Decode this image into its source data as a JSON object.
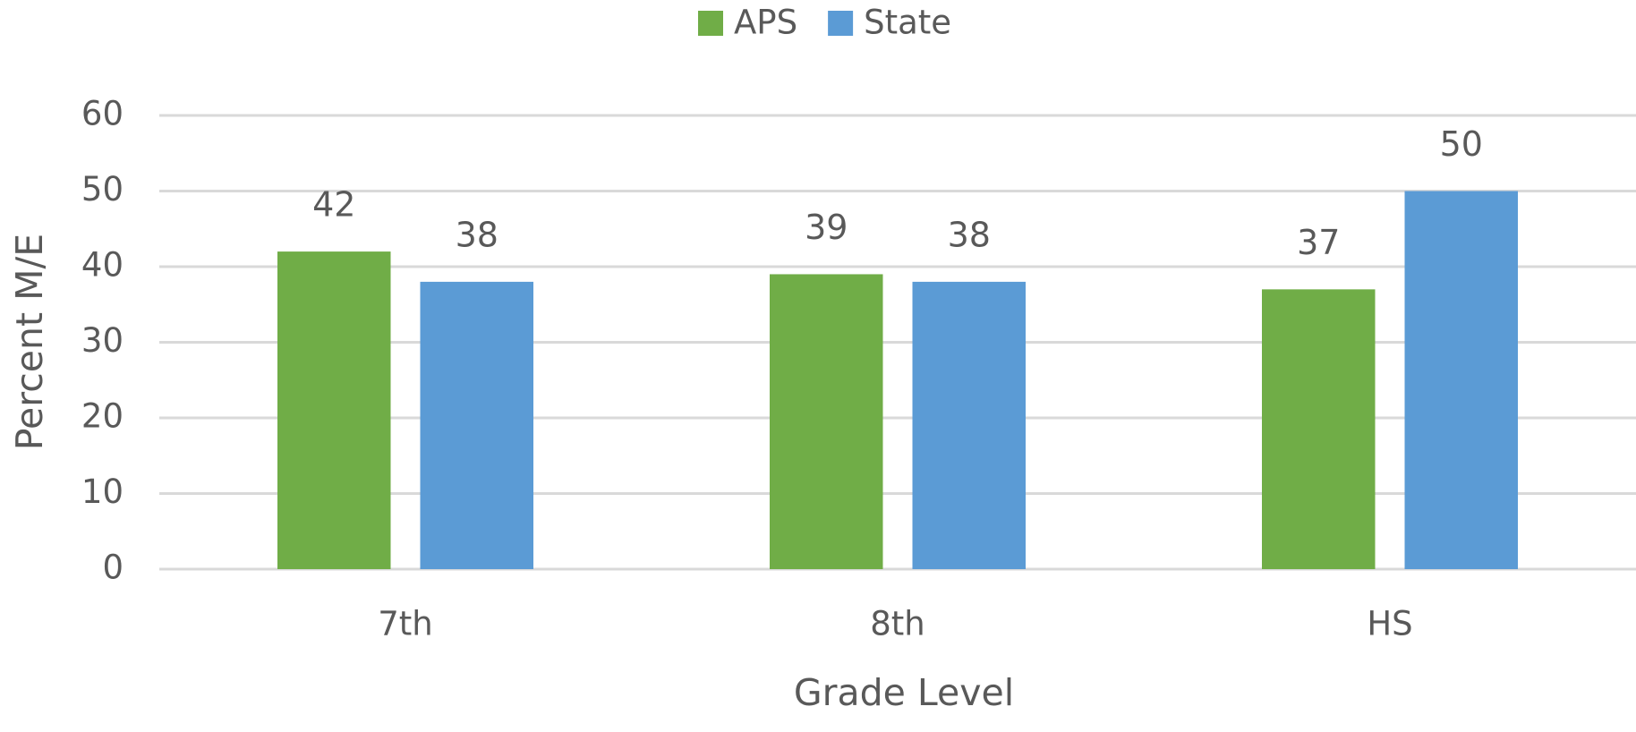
{
  "chart_data": {
    "type": "bar",
    "categories": [
      "7th",
      "8th",
      "HS"
    ],
    "series": [
      {
        "name": "APS",
        "color": "#70ad47",
        "values": [
          42,
          39,
          37
        ]
      },
      {
        "name": "State",
        "color": "#5b9bd5",
        "values": [
          38,
          38,
          50
        ]
      }
    ],
    "x_label": "Grade Level",
    "y_label": "Percent M/E",
    "ylim": [
      0,
      60
    ],
    "yticks": [
      0,
      10,
      20,
      30,
      40,
      50,
      60
    ],
    "grid": true,
    "legend": "top"
  }
}
